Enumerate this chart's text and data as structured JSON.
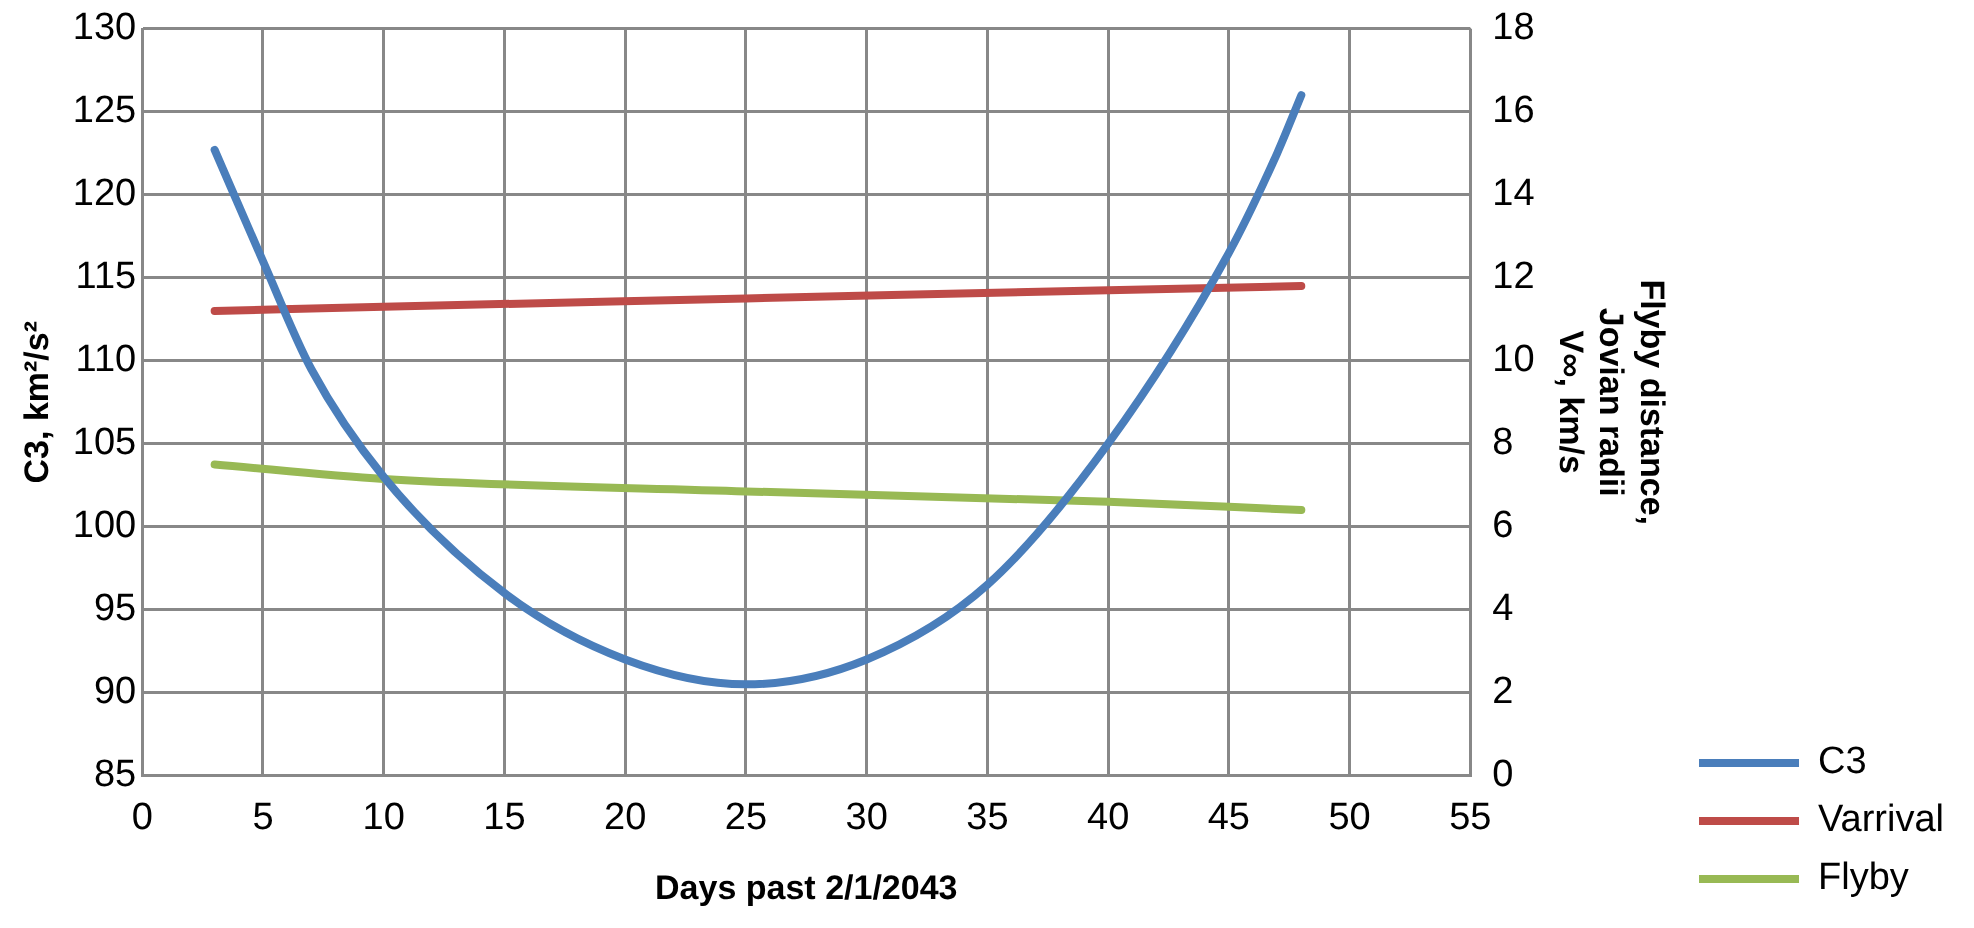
{
  "chart_data": {
    "type": "line",
    "xlabel": "Days past 2/1/2043",
    "ylabel": "C3, km²/s²",
    "y2label": "Flyby distance,\nJovian radii\nV∞, km/s",
    "xlim": [
      0,
      55
    ],
    "xticks": [
      0,
      5,
      10,
      15,
      20,
      25,
      30,
      35,
      40,
      45,
      50,
      55
    ],
    "ylim": [
      85,
      130
    ],
    "yticks": [
      85,
      90,
      95,
      100,
      105,
      110,
      115,
      120,
      125,
      130
    ],
    "y2lim": [
      0,
      18
    ],
    "y2ticks": [
      0,
      2,
      4,
      6,
      8,
      10,
      12,
      14,
      16,
      18
    ],
    "grid": true,
    "legend": "bottom right",
    "marker": "none",
    "line_style": "solid",
    "series": [
      {
        "name": "C3",
        "color": "#4a7ebb",
        "x": [
          3,
          5,
          7,
          10,
          15,
          20,
          25,
          30,
          35,
          40,
          45,
          47,
          48
        ],
        "values": [
          122.7,
          116,
          109.5,
          103,
          96,
          92,
          90.5,
          92,
          96.5,
          105,
          116.5,
          122.5,
          126
        ]
      },
      {
        "name": "Varrival",
        "color": "#be4b48",
        "axis": "y2",
        "x": [
          3,
          10,
          25,
          40,
          48
        ],
        "values": [
          11.2,
          11.3,
          11.5,
          11.7,
          11.8
        ]
      },
      {
        "name": "Flyby",
        "color": "#98b954",
        "axis": "y2",
        "x": [
          3,
          10,
          25,
          40,
          48
        ],
        "values": [
          7.5,
          7.15,
          6.85,
          6.6,
          6.4
        ]
      }
    ]
  }
}
